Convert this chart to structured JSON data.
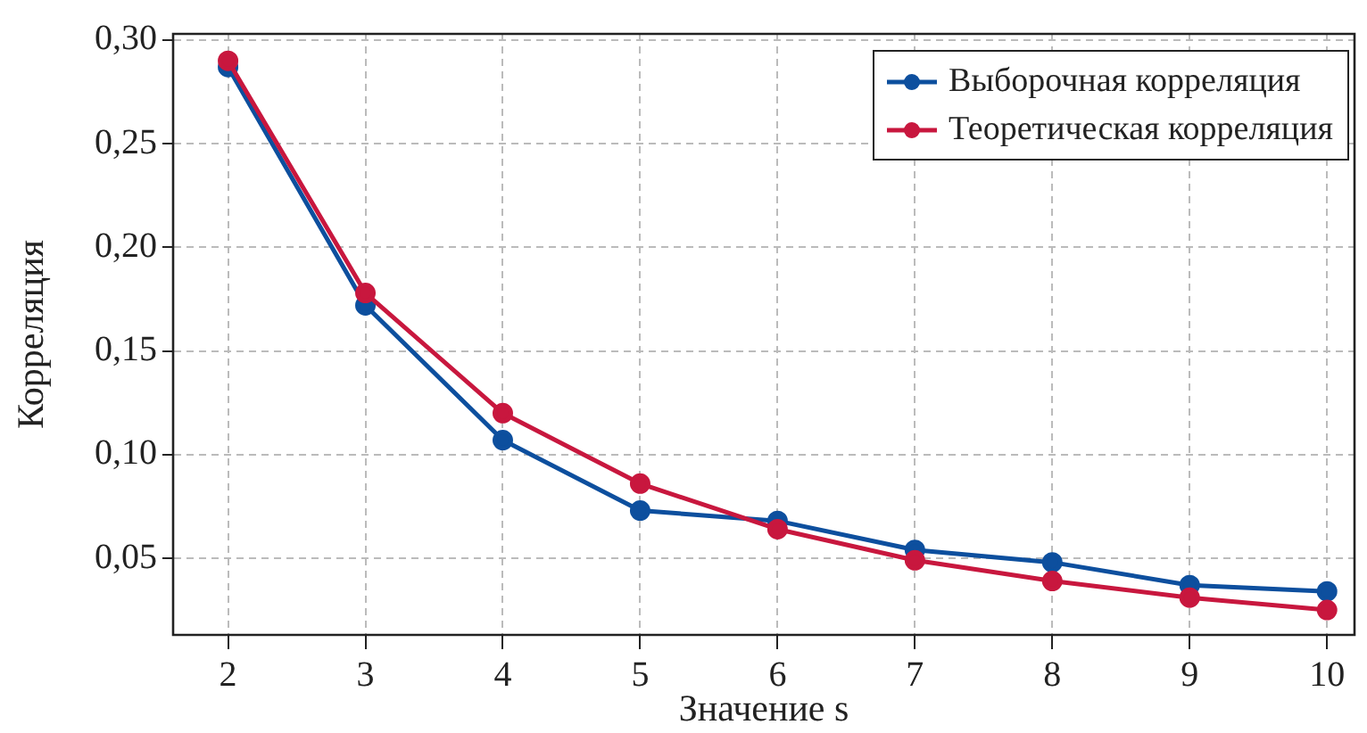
{
  "chart_data": {
    "type": "line",
    "xlabel": "Значение s",
    "ylabel": "Корреляция",
    "x": [
      2,
      3,
      4,
      5,
      6,
      7,
      8,
      9,
      10
    ],
    "series": [
      {
        "name": "Выборочная корреляция",
        "color": "#0d4f9e",
        "values": [
          0.287,
          0.172,
          0.107,
          0.073,
          0.068,
          0.054,
          0.048,
          0.037,
          0.034
        ]
      },
      {
        "name": "Теоретическая корреляция",
        "color": "#c8173e",
        "values": [
          0.29,
          0.178,
          0.12,
          0.086,
          0.064,
          0.049,
          0.039,
          0.031,
          0.025
        ]
      }
    ],
    "xlim": [
      1.6,
      10.2
    ],
    "xticks": [
      2,
      3,
      4,
      5,
      6,
      7,
      8,
      9,
      10
    ],
    "ylim": [
      0.013,
      0.303
    ],
    "yticks": [
      {
        "value": 0.05,
        "label": "0,05"
      },
      {
        "value": 0.1,
        "label": "0,10"
      },
      {
        "value": 0.15,
        "label": "0,15"
      },
      {
        "value": 0.2,
        "label": "0,20"
      },
      {
        "value": 0.25,
        "label": "0,25"
      },
      {
        "value": 0.3,
        "label": "0,30"
      }
    ],
    "grid": true,
    "legend": "top right",
    "marker": "circle",
    "line_style": "solid"
  }
}
